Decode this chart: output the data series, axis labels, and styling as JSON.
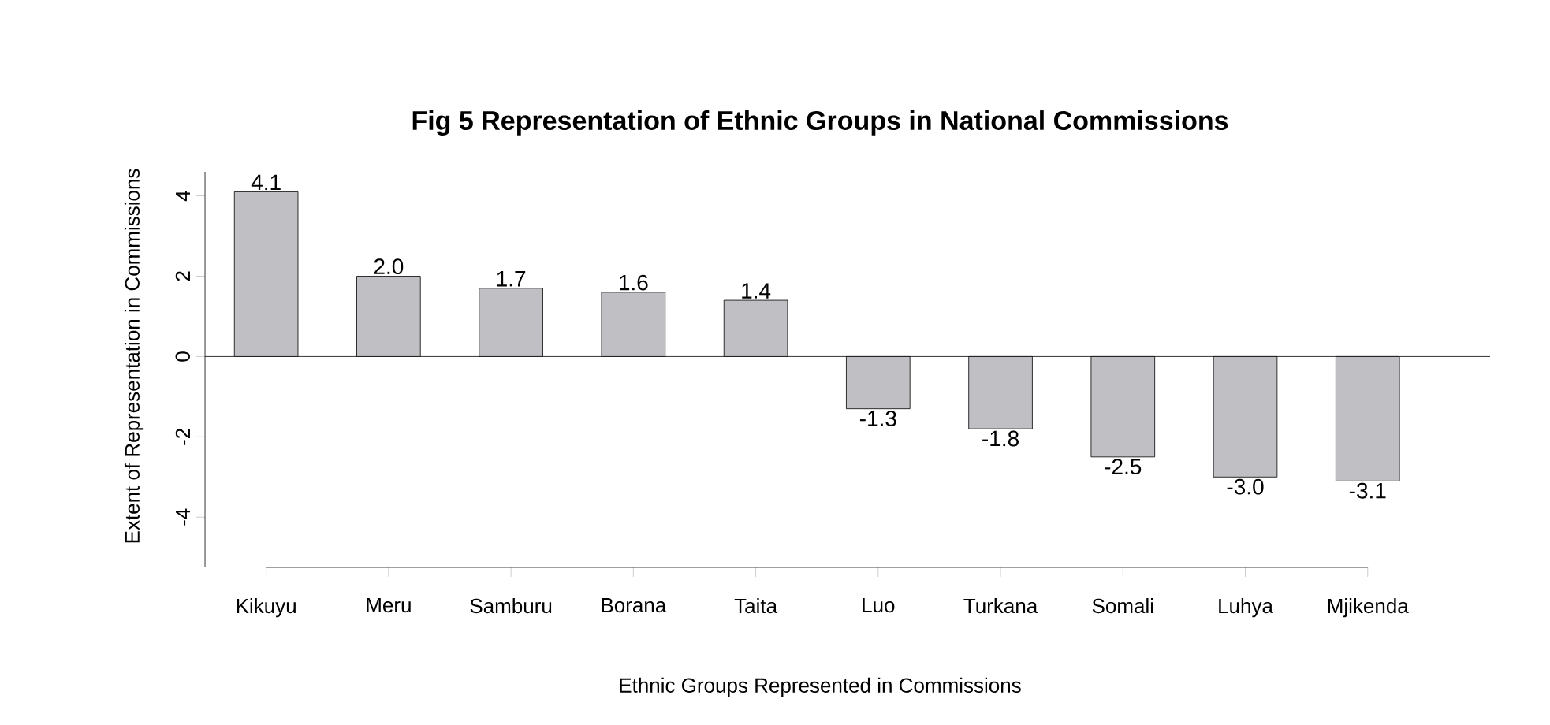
{
  "chart_data": {
    "type": "bar",
    "title": "Fig 5 Representation of Ethnic Groups in National Commissions",
    "xlabel": "Ethnic Groups Represented in Commissions",
    "ylabel": "Extent of Representation in Commissions",
    "categories": [
      "Kikuyu",
      "Meru",
      "Samburu",
      "Borana",
      "Taita",
      "Luo",
      "Turkana",
      "Somali",
      "Luhya",
      "Mjikenda"
    ],
    "values": [
      4.1,
      2.0,
      1.7,
      1.6,
      1.4,
      -1.3,
      -1.8,
      -2.5,
      -3.0,
      -3.1
    ],
    "value_labels": [
      "4.1",
      "2.0",
      "1.7",
      "1.6",
      "1.4",
      "-1.3",
      "-1.8",
      "-2.5",
      "-3.0",
      "-3.1"
    ],
    "color": "#c0bfc3",
    "ylim": [
      -5.25,
      4.6
    ],
    "yticks": [
      -4,
      -2,
      0,
      2,
      4
    ],
    "grid": false,
    "ref_lines": [
      {
        "axis": "y",
        "value": 0,
        "color": "#000000"
      }
    ]
  }
}
